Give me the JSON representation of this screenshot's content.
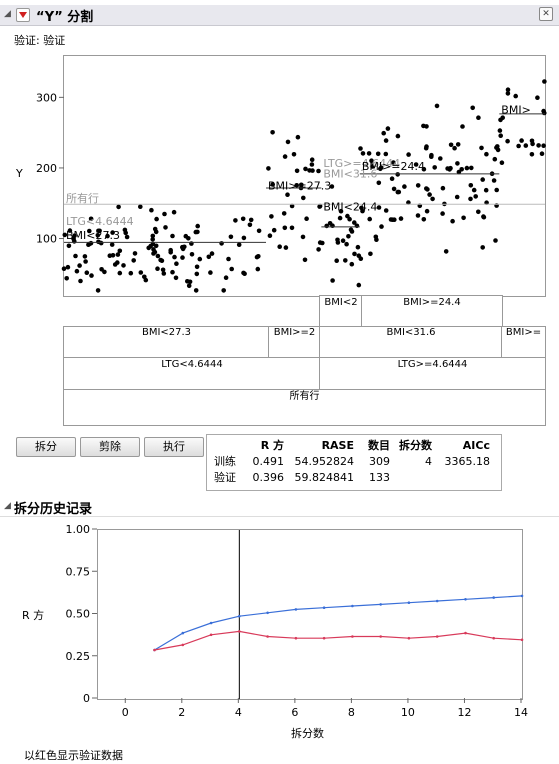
{
  "header": {
    "title": "“Y” 分割"
  },
  "subtitle": "验证: 验证",
  "top_plot": {
    "ylabel": "Y",
    "yticks": [
      {
        "v": 100,
        "label": "100"
      },
      {
        "v": 200,
        "label": "200"
      },
      {
        "v": 300,
        "label": "300"
      }
    ],
    "ylim": [
      20,
      360
    ],
    "labels": [
      {
        "text": "所有行",
        "x": 0.0,
        "y": 150,
        "gray": true
      },
      {
        "text": "LTG<4.6444",
        "x": 0.0,
        "y": 118,
        "gray": true
      },
      {
        "text": "BMI<27.3",
        "x": 0.0,
        "y": 98,
        "gray": false
      },
      {
        "text": "BMI>=27.3",
        "x": 0.42,
        "y": 168,
        "gray": false
      },
      {
        "text": "BMI<24.4",
        "x": 0.535,
        "y": 138,
        "gray": false
      },
      {
        "text": "LTG>=4.6444",
        "x": 0.535,
        "y": 200,
        "gray": true
      },
      {
        "text": "BMI<31.6",
        "x": 0.535,
        "y": 185,
        "gray": true
      },
      {
        "text": "BMI>=24.4",
        "x": 0.615,
        "y": 196,
        "gray": false
      },
      {
        "text": "BMI>",
        "x": 0.905,
        "y": 276,
        "gray": false
      }
    ]
  },
  "tree": {
    "row1": [
      {
        "label": "BMI<2"
      },
      {
        "label": "BMI>=24.4"
      }
    ],
    "row2": [
      {
        "label": "BMI<27.3"
      },
      {
        "label": "BMI>=2"
      },
      {
        "label": "BMI<31.6"
      },
      {
        "label": "BMI>="
      }
    ],
    "row3": [
      {
        "label": "LTG<4.6444"
      },
      {
        "label": "LTG>=4.6444"
      }
    ],
    "row4": [
      {
        "label": "所有行"
      }
    ]
  },
  "buttons": {
    "split": "拆分",
    "prune": "剪除",
    "go": "执行"
  },
  "stats": {
    "headers": [
      "",
      "R 方",
      "RASE",
      "数目",
      "拆分数",
      "AICc"
    ],
    "rows": [
      [
        "训练",
        "0.491",
        "54.952824",
        "309",
        "4",
        "3365.18"
      ],
      [
        "验证",
        "0.396",
        "59.824841",
        "133",
        "",
        ""
      ]
    ]
  },
  "history": {
    "title": "拆分历史记录",
    "ylabel": "R 方",
    "xlabel": "拆分数",
    "footnote": "以红色显示验证数据"
  },
  "chart_data": {
    "type": "line",
    "title": "",
    "xlabel": "拆分数",
    "ylabel": "R 方",
    "xlim": [
      -1,
      14
    ],
    "ylim": [
      0,
      1
    ],
    "xticks": [
      0,
      2,
      4,
      6,
      8,
      10,
      12,
      14
    ],
    "yticks": [
      0,
      0.25,
      0.5,
      0.75,
      1
    ],
    "ytick_labels": [
      "0",
      "0.25",
      "0.50",
      "0.75",
      "1.00"
    ],
    "marker_line_x": 4,
    "series": [
      {
        "color": "#3a6fd8",
        "x": [
          1,
          2,
          3,
          4,
          5,
          6,
          7,
          8,
          9,
          10,
          11,
          12,
          13,
          14
        ],
        "values": [
          0.29,
          0.39,
          0.45,
          0.49,
          0.51,
          0.53,
          0.54,
          0.55,
          0.56,
          0.57,
          0.58,
          0.59,
          0.6,
          0.61
        ]
      },
      {
        "color": "#d83a5a",
        "x": [
          1,
          2,
          3,
          4,
          5,
          6,
          7,
          8,
          9,
          10,
          11,
          12,
          13,
          14
        ],
        "values": [
          0.29,
          0.32,
          0.38,
          0.4,
          0.37,
          0.36,
          0.36,
          0.37,
          0.37,
          0.36,
          0.37,
          0.39,
          0.36,
          0.35
        ]
      }
    ]
  }
}
